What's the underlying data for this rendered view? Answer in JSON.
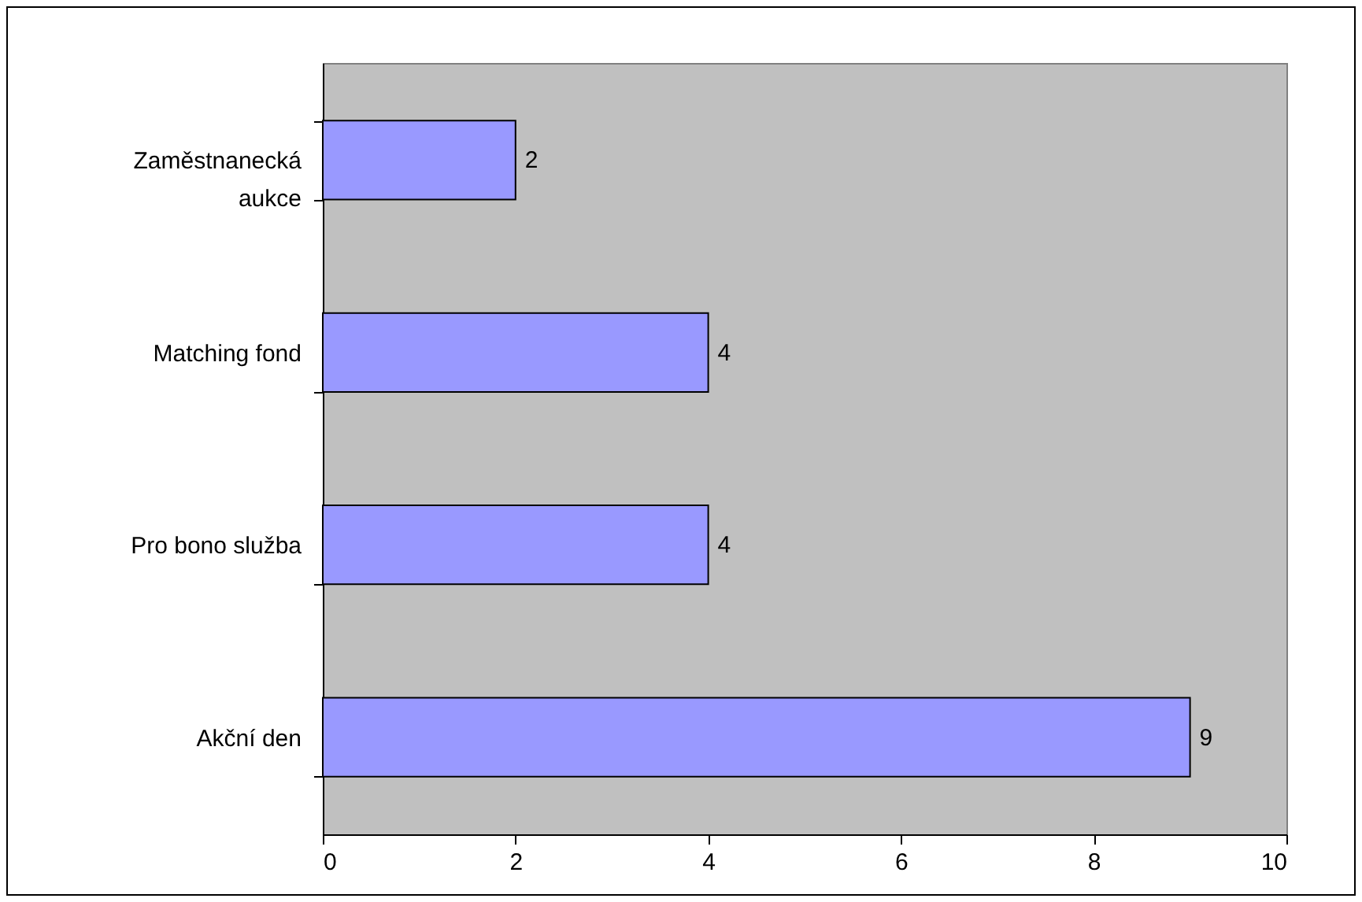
{
  "chart_data": {
    "type": "bar",
    "orientation": "horizontal",
    "categories": [
      "Zaměstnanecká aukce",
      "Matching fond",
      "Pro bono služba",
      "Akční den"
    ],
    "values": [
      2,
      4,
      4,
      9
    ],
    "color": "#9999ff",
    "xlim": [
      0,
      10
    ],
    "xticks": [
      0,
      2,
      4,
      6,
      8,
      10
    ],
    "data_labels": true,
    "grid": false
  }
}
